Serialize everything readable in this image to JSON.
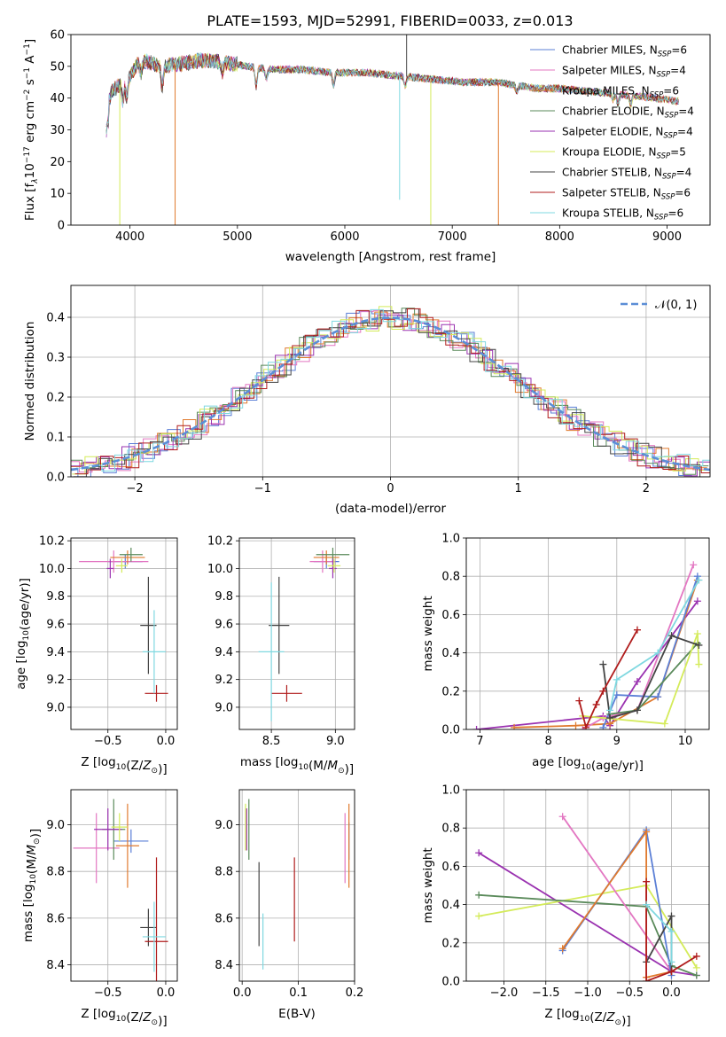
{
  "title": "PLATE=1593, MJD=52991, FIBERID=0033, z=0.013",
  "colors": {
    "chabrier_miles": "#5b7fd6",
    "salpeter_miles": "#e377c2",
    "kroupa_miles": "#e07a2e",
    "chabrier_elodie": "#5a8a5a",
    "salpeter_elodie": "#9a32b0",
    "kroupa_elodie": "#d4eb5a",
    "chabrier_stelib": "#444444",
    "salpeter_stelib": "#b01c1c",
    "kroupa_stelib": "#7fd8e0"
  },
  "chart_data": [
    {
      "id": "spectrum",
      "type": "line",
      "xlabel": "wavelength [Angstrom, rest frame]",
      "ylabel": "Flux [f_λ10^-17 erg cm^-2 s^-1 A^-1]",
      "xlim": [
        3450,
        9400
      ],
      "ylim": [
        0,
        60
      ],
      "xticks": [
        4000,
        5000,
        6000,
        7000,
        8000,
        9000
      ],
      "yticks": [
        0,
        10,
        20,
        30,
        40,
        50,
        60
      ],
      "legend_position": "top-right",
      "legend": [
        {
          "base": "Chabrier MILES, N",
          "n": "6",
          "color_key": "chabrier_miles"
        },
        {
          "base": "Salpeter MILES, N",
          "n": "4",
          "color_key": "salpeter_miles"
        },
        {
          "base": "Kroupa MILES, N",
          "n": "6",
          "color_key": "kroupa_miles"
        },
        {
          "base": "Chabrier ELODIE, N",
          "n": "4",
          "color_key": "chabrier_elodie"
        },
        {
          "base": "Salpeter ELODIE, N",
          "n": "4",
          "color_key": "salpeter_elodie"
        },
        {
          "base": "Kroupa ELODIE, N",
          "n": "5",
          "color_key": "kroupa_elodie"
        },
        {
          "base": "Chabrier STELIB, N",
          "n": "4",
          "color_key": "chabrier_stelib"
        },
        {
          "base": "Salpeter STELIB, N",
          "n": "6",
          "color_key": "salpeter_stelib"
        },
        {
          "base": "Kroupa STELIB, N",
          "n": "6",
          "color_key": "kroupa_stelib"
        }
      ],
      "legend_subscript": "SSP",
      "continuum": [
        [
          3780,
          36
        ],
        [
          3830,
          42
        ],
        [
          3900,
          44
        ],
        [
          4000,
          47
        ],
        [
          4100,
          52
        ],
        [
          4300,
          50
        ],
        [
          4500,
          51
        ],
        [
          4700,
          52
        ],
        [
          4900,
          51
        ],
        [
          5100,
          50
        ],
        [
          5300,
          49
        ],
        [
          5600,
          49
        ],
        [
          5900,
          48
        ],
        [
          6200,
          48
        ],
        [
          6500,
          47
        ],
        [
          6800,
          46
        ],
        [
          7100,
          45
        ],
        [
          7400,
          45
        ],
        [
          7600,
          44
        ],
        [
          7800,
          43
        ],
        [
          8000,
          43
        ],
        [
          8300,
          42
        ],
        [
          8600,
          41
        ],
        [
          8900,
          40
        ],
        [
          9100,
          39
        ]
      ],
      "absorptions": [
        [
          3934,
          6
        ],
        [
          3969,
          6
        ],
        [
          4102,
          4
        ],
        [
          4300,
          7
        ],
        [
          4861,
          3
        ],
        [
          5175,
          6
        ],
        [
          5270,
          3
        ],
        [
          5895,
          4
        ],
        [
          6563,
          3
        ],
        [
          7600,
          2
        ],
        [
          8498,
          2
        ],
        [
          8542,
          3
        ],
        [
          8662,
          3
        ]
      ],
      "spikes": [
        [
          3905,
          0,
          "kroupa_elodie"
        ],
        [
          4420,
          0,
          "kroupa_miles"
        ],
        [
          6510,
          8,
          "kroupa_stelib"
        ],
        [
          6800,
          0,
          "kroupa_elodie"
        ],
        [
          7430,
          0,
          "kroupa_miles"
        ],
        [
          6575,
          60,
          "chabrier_stelib"
        ]
      ]
    },
    {
      "id": "residuals",
      "type": "line",
      "xlabel": "(data-model)/error",
      "ylabel": "Normed distribution",
      "xlim": [
        -2.5,
        2.5
      ],
      "ylim": [
        0,
        0.48
      ],
      "xticks": [
        -2,
        -1,
        0,
        1,
        2
      ],
      "yticks": [
        0.0,
        0.1,
        0.2,
        0.3,
        0.4
      ],
      "grid": true,
      "legend_position": "top-right",
      "legend_label": "𝒩(0, 1)",
      "bin_width": 0.1,
      "curve": "normal, mean 0, sigma 1"
    },
    {
      "id": "age-vs-z",
      "type": "scatter",
      "xlabel": "Z [log10(Z/Z⊙)]",
      "ylabel": "age  [log10(age/yr)]",
      "xlim": [
        -0.82,
        0.1
      ],
      "ylim": [
        8.84,
        10.22
      ],
      "xticks": [
        -0.5,
        0.0
      ],
      "yticks": [
        9.0,
        9.2,
        9.4,
        9.6,
        9.8,
        10.0,
        10.2
      ],
      "grid": true,
      "points": [
        {
          "color_key": "chabrier_miles",
          "x": -0.35,
          "xerr": 0.15,
          "y": 10.05,
          "yerr": 0.05
        },
        {
          "color_key": "salpeter_miles",
          "x": -0.45,
          "xerr": 0.3,
          "y": 10.05,
          "yerr": 0.08
        },
        {
          "color_key": "kroupa_miles",
          "x": -0.33,
          "xerr": 0.15,
          "y": 10.08,
          "yerr": 0.05
        },
        {
          "color_key": "chabrier_elodie",
          "x": -0.3,
          "xerr": 0.1,
          "y": 10.1,
          "yerr": 0.05
        },
        {
          "color_key": "salpeter_elodie",
          "x": -0.48,
          "xerr": 0.03,
          "y": 10.0,
          "yerr": 0.07
        },
        {
          "color_key": "kroupa_elodie",
          "x": -0.38,
          "xerr": 0.05,
          "y": 10.02,
          "yerr": 0.05
        },
        {
          "color_key": "chabrier_stelib",
          "x": -0.15,
          "xerr": 0.07,
          "y": 9.59,
          "yerr": 0.35
        },
        {
          "color_key": "salpeter_stelib",
          "x": -0.08,
          "xerr": 0.1,
          "y": 9.1,
          "yerr": 0.06
        },
        {
          "color_key": "kroupa_stelib",
          "x": -0.1,
          "xerr": 0.1,
          "y": 9.4,
          "yerr": 0.3
        }
      ]
    },
    {
      "id": "age-vs-mass",
      "type": "scatter",
      "xlabel": "mass [log10(M/M⊙)]",
      "xlim": [
        8.25,
        9.15
      ],
      "ylim": [
        8.84,
        10.22
      ],
      "xticks": [
        8.5,
        9.0
      ],
      "yticks": [
        9.0,
        9.2,
        9.4,
        9.6,
        9.8,
        10.0,
        10.2
      ],
      "grid": true,
      "points": [
        {
          "color_key": "chabrier_miles",
          "x": 8.93,
          "xerr": 0.1,
          "y": 10.05,
          "yerr": 0.05
        },
        {
          "color_key": "salpeter_miles",
          "x": 8.9,
          "xerr": 0.1,
          "y": 10.05,
          "yerr": 0.08
        },
        {
          "color_key": "kroupa_miles",
          "x": 8.93,
          "xerr": 0.1,
          "y": 10.08,
          "yerr": 0.05
        },
        {
          "color_key": "chabrier_elodie",
          "x": 8.98,
          "xerr": 0.13,
          "y": 10.1,
          "yerr": 0.05
        },
        {
          "color_key": "salpeter_elodie",
          "x": 8.98,
          "xerr": 0.03,
          "y": 10.0,
          "yerr": 0.07
        },
        {
          "color_key": "kroupa_elodie",
          "x": 8.99,
          "xerr": 0.05,
          "y": 10.02,
          "yerr": 0.05
        },
        {
          "color_key": "chabrier_stelib",
          "x": 8.56,
          "xerr": 0.08,
          "y": 9.59,
          "yerr": 0.35
        },
        {
          "color_key": "salpeter_stelib",
          "x": 8.62,
          "xerr": 0.12,
          "y": 9.1,
          "yerr": 0.06
        },
        {
          "color_key": "kroupa_stelib",
          "x": 8.5,
          "xerr": 0.1,
          "y": 9.4,
          "yerr": 0.5
        }
      ]
    },
    {
      "id": "weight-vs-age",
      "type": "line",
      "xlabel": "age  [log10(age/yr)]",
      "ylabel": "mass weight",
      "xlim": [
        6.8,
        10.35
      ],
      "ylim": [
        0,
        1
      ],
      "xticks": [
        7,
        8,
        9,
        10
      ],
      "yticks": [
        0.0,
        0.2,
        0.4,
        0.6,
        0.8,
        1.0
      ],
      "grid": true,
      "series": [
        {
          "color_key": "salpeter_elodie",
          "x": [
            6.95,
            8.8,
            8.9,
            9.3,
            10.18
          ],
          "y": [
            0.0,
            0.07,
            0.02,
            0.25,
            0.67
          ]
        },
        {
          "color_key": "kroupa_miles",
          "x": [
            7.5,
            8.4,
            8.9,
            9.6,
            10.18
          ],
          "y": [
            0.01,
            0.02,
            0.03,
            0.17,
            0.78
          ]
        },
        {
          "color_key": "salpeter_miles",
          "x": [
            8.5,
            8.8,
            9.3,
            10.12
          ],
          "y": [
            0.0,
            0.06,
            0.1,
            0.86
          ]
        },
        {
          "color_key": "chabrier_miles",
          "x": [
            8.8,
            9.0,
            9.6,
            10.18
          ],
          "y": [
            0.01,
            0.18,
            0.17,
            0.8
          ]
        },
        {
          "color_key": "chabrier_elodie",
          "x": [
            8.9,
            9.3,
            10.18
          ],
          "y": [
            0.08,
            0.1,
            0.45
          ]
        },
        {
          "color_key": "kroupa_elodie",
          "x": [
            8.5,
            9.7,
            10.18,
            10.2
          ],
          "y": [
            0.07,
            0.03,
            0.5,
            0.34
          ]
        },
        {
          "color_key": "chabrier_stelib",
          "x": [
            8.8,
            8.9,
            9.3,
            9.8,
            10.2
          ],
          "y": [
            0.34,
            0.06,
            0.1,
            0.49,
            0.44
          ]
        },
        {
          "color_key": "salpeter_stelib",
          "x": [
            8.45,
            8.55,
            8.7,
            8.8,
            9.3
          ],
          "y": [
            0.15,
            0.01,
            0.13,
            0.2,
            0.52
          ]
        },
        {
          "color_key": "kroupa_stelib",
          "x": [
            8.9,
            9.0,
            9.6,
            10.2
          ],
          "y": [
            0.1,
            0.26,
            0.4,
            0.78
          ]
        }
      ]
    },
    {
      "id": "mass-vs-z",
      "type": "scatter",
      "xlabel": "Z [log10(Z/Z⊙)]",
      "ylabel": "mass [log10(M/M⊙)]",
      "xlim": [
        -0.82,
        0.1
      ],
      "ylim": [
        8.33,
        9.15
      ],
      "xticks": [
        -0.5,
        0.0
      ],
      "yticks": [
        8.4,
        8.6,
        8.8,
        9.0
      ],
      "grid": true,
      "points": [
        {
          "color_key": "chabrier_miles",
          "x": -0.3,
          "xerr": 0.15,
          "y": 8.93,
          "yerr": 0.05
        },
        {
          "color_key": "salpeter_miles",
          "x": -0.6,
          "xerr": 0.2,
          "y": 8.9,
          "yerr": 0.15
        },
        {
          "color_key": "kroupa_miles",
          "x": -0.33,
          "xerr": 0.1,
          "y": 8.91,
          "yerr": 0.18
        },
        {
          "color_key": "chabrier_elodie",
          "x": -0.45,
          "xerr": 0.1,
          "y": 8.98,
          "yerr": 0.13
        },
        {
          "color_key": "salpeter_elodie",
          "x": -0.5,
          "xerr": 0.12,
          "y": 8.98,
          "yerr": 0.09
        },
        {
          "color_key": "kroupa_elodie",
          "x": -0.4,
          "xerr": 0.07,
          "y": 8.99,
          "yerr": 0.06
        },
        {
          "color_key": "chabrier_stelib",
          "x": -0.15,
          "xerr": 0.07,
          "y": 8.56,
          "yerr": 0.08
        },
        {
          "color_key": "salpeter_stelib",
          "x": -0.08,
          "xerr": 0.1,
          "y": 8.5,
          "yerr": 0.36
        },
        {
          "color_key": "kroupa_stelib",
          "x": -0.1,
          "xerr": 0.1,
          "y": 8.52,
          "yerr": 0.15
        }
      ]
    },
    {
      "id": "mass-vs-ebv",
      "type": "scatter",
      "xlabel": "E(B-V)",
      "xlim": [
        -0.005,
        0.2
      ],
      "ylim": [
        8.33,
        9.15
      ],
      "xticks": [
        0.0,
        0.1,
        0.2
      ],
      "yticks": [
        8.4,
        8.6,
        8.8,
        9.0
      ],
      "grid": true,
      "points": [
        {
          "color_key": "chabrier_miles",
          "x": 0.19,
          "y": 8.93,
          "yerr": 0.08
        },
        {
          "color_key": "salpeter_miles",
          "x": 0.183,
          "y": 8.9,
          "yerr": 0.15
        },
        {
          "color_key": "kroupa_miles",
          "x": 0.19,
          "y": 8.91,
          "yerr": 0.18
        },
        {
          "color_key": "chabrier_elodie",
          "x": 0.012,
          "y": 8.98,
          "yerr": 0.13
        },
        {
          "color_key": "salpeter_elodie",
          "x": 0.008,
          "y": 8.98,
          "yerr": 0.09
        },
        {
          "color_key": "kroupa_elodie",
          "x": 0.006,
          "y": 8.99,
          "yerr": 0.1
        },
        {
          "color_key": "chabrier_stelib",
          "x": 0.03,
          "y": 8.66,
          "yerr": 0.18
        },
        {
          "color_key": "salpeter_stelib",
          "x": 0.093,
          "y": 8.68,
          "yerr": 0.18
        },
        {
          "color_key": "kroupa_stelib",
          "x": 0.037,
          "y": 8.5,
          "yerr": 0.12
        }
      ]
    },
    {
      "id": "weight-vs-z",
      "type": "line",
      "xlabel": "Z [log10(Z/Z⊙)]",
      "ylabel": "mass weight",
      "xlim": [
        -2.45,
        0.45
      ],
      "ylim": [
        0,
        1
      ],
      "xticks": [
        -2.0,
        -1.5,
        -1.0,
        -0.5,
        0.0
      ],
      "yticks": [
        0.0,
        0.2,
        0.4,
        0.6,
        0.8,
        1.0
      ],
      "grid": true,
      "series": [
        {
          "color_key": "salpeter_elodie",
          "x": [
            -2.3,
            0.0,
            0.3
          ],
          "y": [
            0.67,
            0.05,
            0.03
          ]
        },
        {
          "color_key": "kroupa_elodie",
          "x": [
            -2.3,
            -0.3,
            0.3
          ],
          "y": [
            0.34,
            0.5,
            0.07
          ]
        },
        {
          "color_key": "chabrier_elodie",
          "x": [
            -2.3,
            -0.3,
            0.0,
            0.3
          ],
          "y": [
            0.45,
            0.39,
            0.08,
            0.03
          ]
        },
        {
          "color_key": "salpeter_miles",
          "x": [
            -1.3,
            0.0
          ],
          "y": [
            0.86,
            0.05
          ]
        },
        {
          "color_key": "chabrier_miles",
          "x": [
            -1.3,
            -0.3,
            0.0
          ],
          "y": [
            0.16,
            0.79,
            0.03
          ]
        },
        {
          "color_key": "kroupa_miles",
          "x": [
            -1.3,
            -0.3,
            -0.3,
            0.0
          ],
          "y": [
            0.17,
            0.78,
            0.02,
            0.05
          ]
        },
        {
          "color_key": "chabrier_stelib",
          "x": [
            -0.3,
            0.0,
            0.0
          ],
          "y": [
            0.1,
            0.34,
            0.05
          ]
        },
        {
          "color_key": "salpeter_stelib",
          "x": [
            -0.3,
            -0.3,
            0.0,
            0.3
          ],
          "y": [
            0.52,
            0.0,
            0.05,
            0.13
          ]
        },
        {
          "color_key": "kroupa_stelib",
          "x": [
            -0.3,
            0.0,
            0.0
          ],
          "y": [
            0.4,
            0.26,
            0.1
          ]
        }
      ]
    }
  ]
}
